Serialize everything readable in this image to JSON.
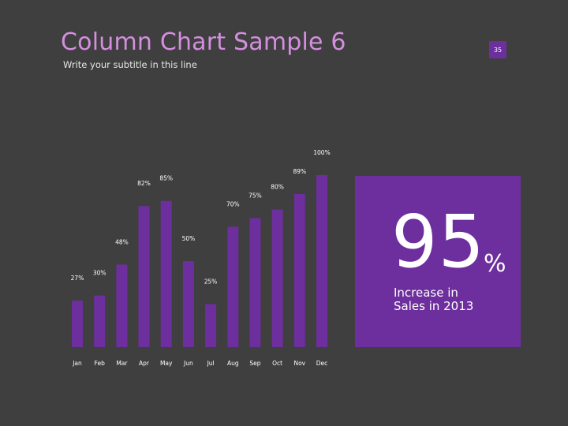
{
  "slide": {
    "title": "Column Chart Sample 6",
    "subtitle": "Write your subtitle in this line",
    "page_number": "35"
  },
  "callout": {
    "number": "95",
    "unit": "%",
    "line1": "Increase in",
    "line2": "Sales in 2013"
  },
  "colors": {
    "background": "#3f3f3f",
    "bar": "#6d2f9d",
    "title": "#d58ee0",
    "callout_bg": "#6d2f9d"
  },
  "chart_data": {
    "type": "bar",
    "categories": [
      "Jan",
      "Feb",
      "Mar",
      "Apr",
      "May",
      "Jun",
      "Jul",
      "Aug",
      "Sep",
      "Oct",
      "Nov",
      "Dec"
    ],
    "values": [
      27,
      30,
      48,
      82,
      85,
      50,
      25,
      70,
      75,
      80,
      89,
      100
    ],
    "data_labels": [
      "27%",
      "30%",
      "48%",
      "82%",
      "85%",
      "50%",
      "25%",
      "70%",
      "75%",
      "80%",
      "89%",
      "100%"
    ],
    "ylim": [
      0,
      100
    ],
    "grid": false,
    "legend": "none"
  }
}
